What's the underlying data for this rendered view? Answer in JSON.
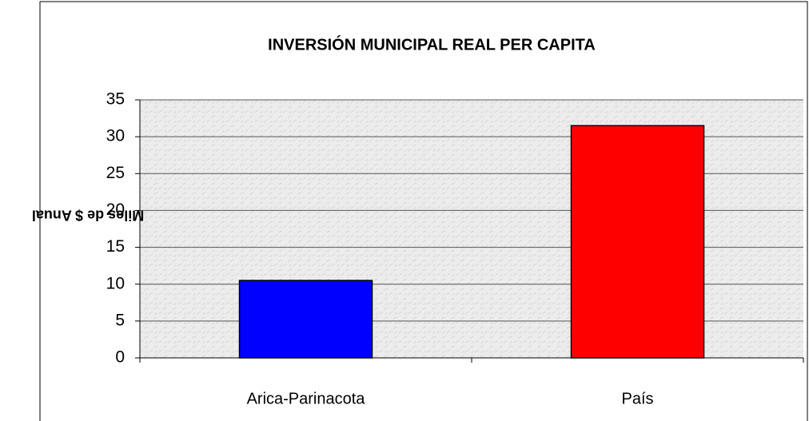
{
  "chart_data": {
    "type": "bar",
    "title": "INVERSIÓN MUNICIPAL REAL PER CAPITA",
    "ylabel": "Miles de $ Anual",
    "categories": [
      "Arica-Parinacota",
      "País"
    ],
    "values": [
      10.5,
      31.5
    ],
    "colors": [
      "#0000ff",
      "#ff0000"
    ],
    "ylim": [
      0,
      35
    ],
    "yticks": [
      0,
      5,
      10,
      15,
      20,
      25,
      30,
      35
    ],
    "grid": true
  }
}
